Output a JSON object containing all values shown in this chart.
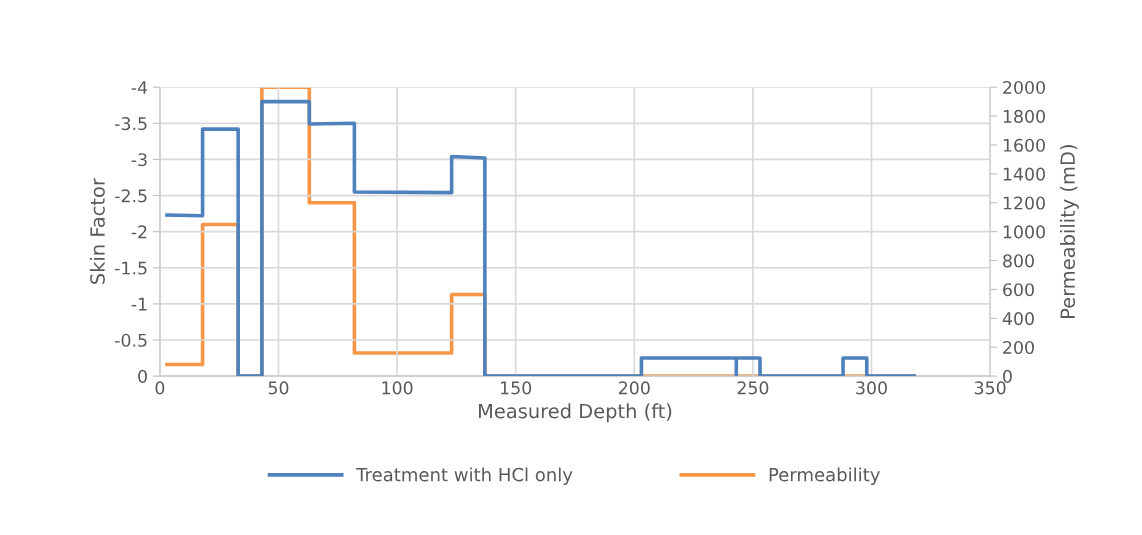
{
  "chart_data": {
    "type": "line",
    "xlabel": "Measured Depth (ft)",
    "ylabel": "Skin Factor",
    "y2label": "Permeability (mD)",
    "xlim": [
      0,
      350
    ],
    "xticks": [
      0,
      50,
      100,
      150,
      200,
      250,
      300,
      350
    ],
    "ylim": [
      0,
      -4
    ],
    "yticks": [
      0,
      -0.5,
      -1,
      -1.5,
      -2,
      -2.5,
      -3,
      -3.5,
      -4
    ],
    "y2lim": [
      0,
      2000
    ],
    "y2ticks": [
      0,
      200,
      400,
      600,
      800,
      1000,
      1200,
      1400,
      1600,
      1800,
      2000
    ],
    "grid": true,
    "legend": "bottom",
    "marker": "none",
    "line_style": "solid",
    "series": [
      {
        "name": "Treatment with HCl only",
        "color": "#4f81bd",
        "x": [
          3,
          18,
          18,
          33,
          33,
          43,
          43,
          63,
          63,
          82,
          82,
          123,
          123,
          137,
          137,
          203,
          203,
          243,
          243,
          243,
          253,
          253,
          288,
          288,
          298,
          298,
          318
        ],
        "values": [
          -2.23,
          -2.22,
          -3.42,
          -3.42,
          0,
          0,
          -3.8,
          -3.8,
          -3.49,
          -3.5,
          -2.55,
          -2.54,
          -3.04,
          -3.02,
          0,
          0,
          -0.25,
          -0.25,
          0,
          -0.25,
          -0.25,
          0,
          0,
          -0.25,
          -0.25,
          0,
          0
        ]
      },
      {
        "name": "Permeability",
        "color": "#f79646",
        "axis": "y2",
        "x": [
          3,
          18,
          18,
          33,
          33,
          43,
          43,
          63,
          63,
          82,
          82,
          123,
          123,
          137,
          137,
          318
        ],
        "values": [
          80,
          80,
          1050,
          1050,
          0,
          0,
          2000,
          2000,
          1200,
          1200,
          160,
          160,
          565,
          565,
          0,
          0
        ]
      }
    ]
  }
}
